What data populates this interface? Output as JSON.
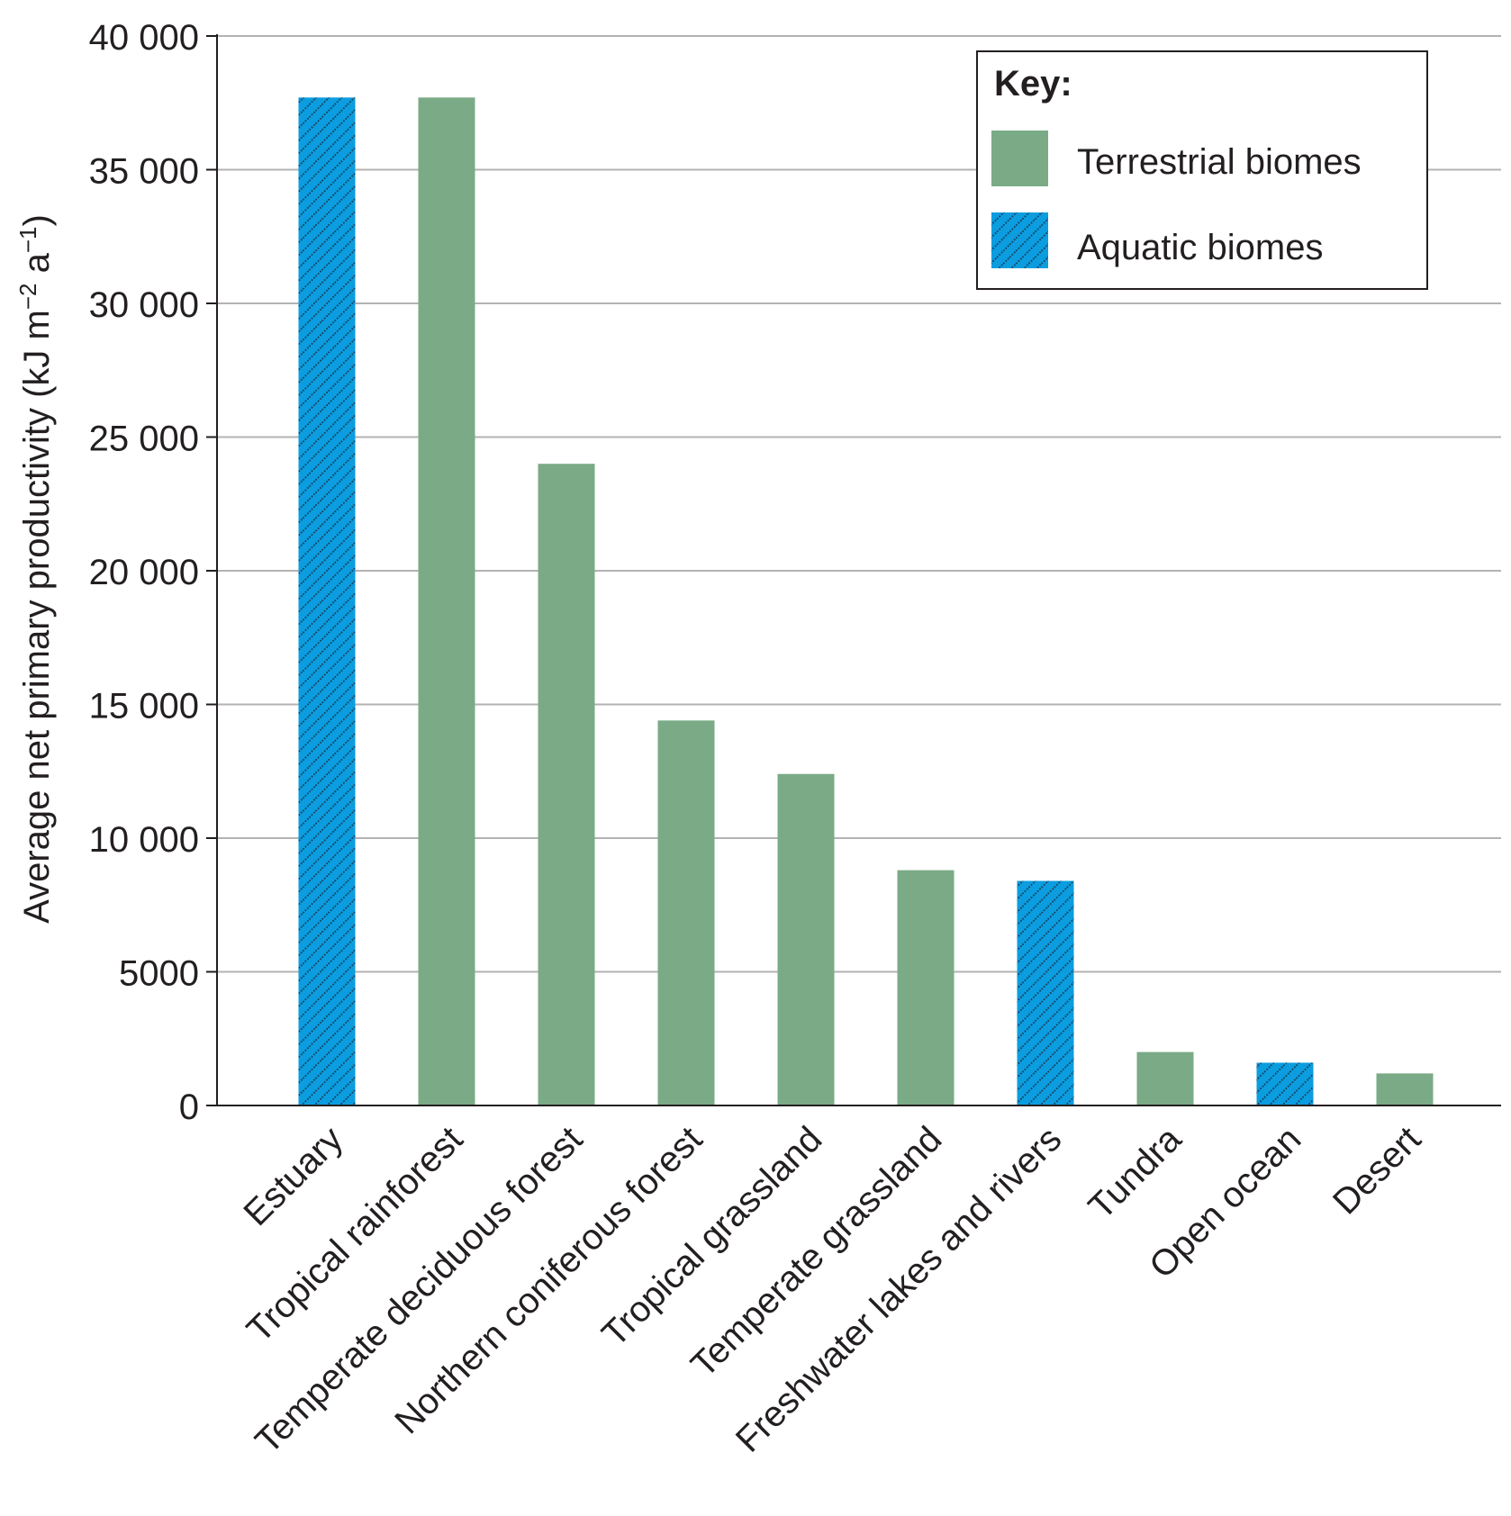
{
  "chart_data": {
    "type": "bar",
    "title": "",
    "xlabel": "",
    "ylabel": "Average net primary productivity (kJ m",
    "ylabel_sup1": "−2",
    "ylabel_mid": " a",
    "ylabel_sup2": "−1",
    "ylabel_end": ")",
    "ylim": [
      0,
      40000
    ],
    "yticks": [
      0,
      5000,
      10000,
      15000,
      20000,
      25000,
      30000,
      35000,
      40000
    ],
    "ytick_labels": [
      "0",
      "5000",
      "10 000",
      "15 000",
      "20 000",
      "25 000",
      "30 000",
      "35 000",
      "40 000"
    ],
    "grid": true,
    "legend_position": "top-right",
    "categories": [
      "Estuary",
      "Tropical rainforest",
      "Temperate deciduous forest",
      "Northern coniferous forest",
      "Tropical grassland",
      "Temperate grassland",
      "Freshwater lakes and rivers",
      "Tundra",
      "Open ocean",
      "Desert"
    ],
    "values": [
      37700,
      37700,
      24000,
      14400,
      12400,
      8800,
      8400,
      2000,
      1600,
      1200
    ],
    "biome_type": [
      "aquatic",
      "terrestrial",
      "terrestrial",
      "terrestrial",
      "terrestrial",
      "terrestrial",
      "aquatic",
      "terrestrial",
      "aquatic",
      "terrestrial"
    ],
    "series": [
      {
        "key": "terrestrial",
        "name": "Terrestrial biomes",
        "color": "#7aab86"
      },
      {
        "key": "aquatic",
        "name": "Aquatic biomes",
        "color": "#0b9ddf",
        "pattern": "diagonal-dots"
      }
    ],
    "legend": {
      "title": "Key:",
      "items": [
        "Terrestrial biomes",
        "Aquatic biomes"
      ]
    }
  }
}
